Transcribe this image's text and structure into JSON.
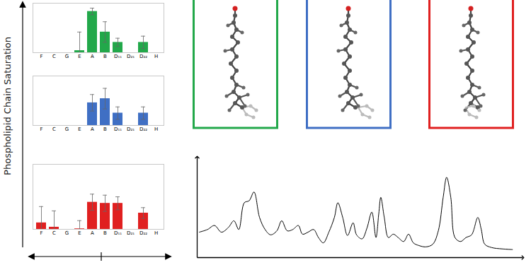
{
  "figure": {
    "ylabel": "Phospholipid Chain Saturation"
  },
  "chart_data": [
    {
      "type": "bar",
      "categories": [
        "F",
        "C",
        "G",
        "E",
        "A",
        "B",
        "D₁₁",
        "D₂₁",
        "D₂₂",
        "H"
      ],
      "values": [
        null,
        null,
        null,
        0.05,
        1.0,
        0.5,
        0.25,
        null,
        0.25,
        null
      ],
      "errors": [
        null,
        null,
        null,
        0.45,
        0.08,
        0.25,
        0.1,
        null,
        0.15,
        null
      ],
      "color": "#22a84a",
      "ylim": [
        0,
        1.2
      ],
      "tick_labels": "x"
    },
    {
      "type": "bar",
      "categories": [
        "F",
        "C",
        "G",
        "E",
        "A",
        "B",
        "D₁₁",
        "D₂₁",
        "D₂₂",
        "H"
      ],
      "values": [
        null,
        null,
        null,
        null,
        0.55,
        0.65,
        0.3,
        null,
        0.3,
        null
      ],
      "errors": [
        null,
        null,
        null,
        null,
        0.2,
        0.25,
        0.15,
        null,
        0.15,
        null
      ],
      "color": "#3f6fc4",
      "ylim": [
        0,
        1.2
      ],
      "tick_labels": "x"
    },
    {
      "type": "bar",
      "categories": [
        "F",
        "C",
        "G",
        "E",
        "A",
        "B",
        "D₁₁",
        "D₂₁",
        "D₂₂",
        "H"
      ],
      "values": [
        0.12,
        0.04,
        null,
        0.01,
        0.5,
        0.48,
        0.48,
        null,
        0.3,
        null
      ],
      "errors": [
        0.3,
        0.3,
        null,
        0.15,
        0.15,
        0.15,
        0.12,
        null,
        0.1,
        null
      ],
      "color": "#e02020",
      "ylim": [
        0,
        1.2
      ],
      "tick_labels": "x"
    },
    {
      "type": "line",
      "x": [
        3,
        15,
        25,
        35,
        45,
        53,
        60,
        68,
        75,
        82,
        90,
        98,
        106,
        115,
        122,
        130,
        138,
        146,
        152,
        160,
        168,
        175,
        182,
        190,
        198,
        203,
        210,
        217,
        225,
        230,
        238,
        245,
        252,
        258,
        262,
        265,
        270,
        276,
        283,
        290,
        298,
        305,
        312,
        320,
        330,
        340,
        348,
        355,
        360,
        366,
        372,
        380,
        388,
        396,
        405,
        410,
        415,
        425,
        440,
        455
      ],
      "values": [
        38,
        42,
        48,
        38,
        45,
        55,
        42,
        82,
        85,
        98,
        60,
        42,
        34,
        40,
        55,
        40,
        42,
        48,
        35,
        38,
        42,
        30,
        22,
        38,
        60,
        82,
        60,
        33,
        52,
        34,
        28,
        44,
        68,
        30,
        65,
        90,
        60,
        30,
        35,
        30,
        24,
        35,
        22,
        18,
        16,
        20,
        40,
        90,
        120,
        90,
        30,
        24,
        30,
        34,
        60,
        42,
        20,
        15,
        13,
        12
      ],
      "color": "#000000",
      "xlim": [
        0,
        470
      ],
      "ylim": [
        0,
        150
      ],
      "tick_labels": false
    }
  ]
}
